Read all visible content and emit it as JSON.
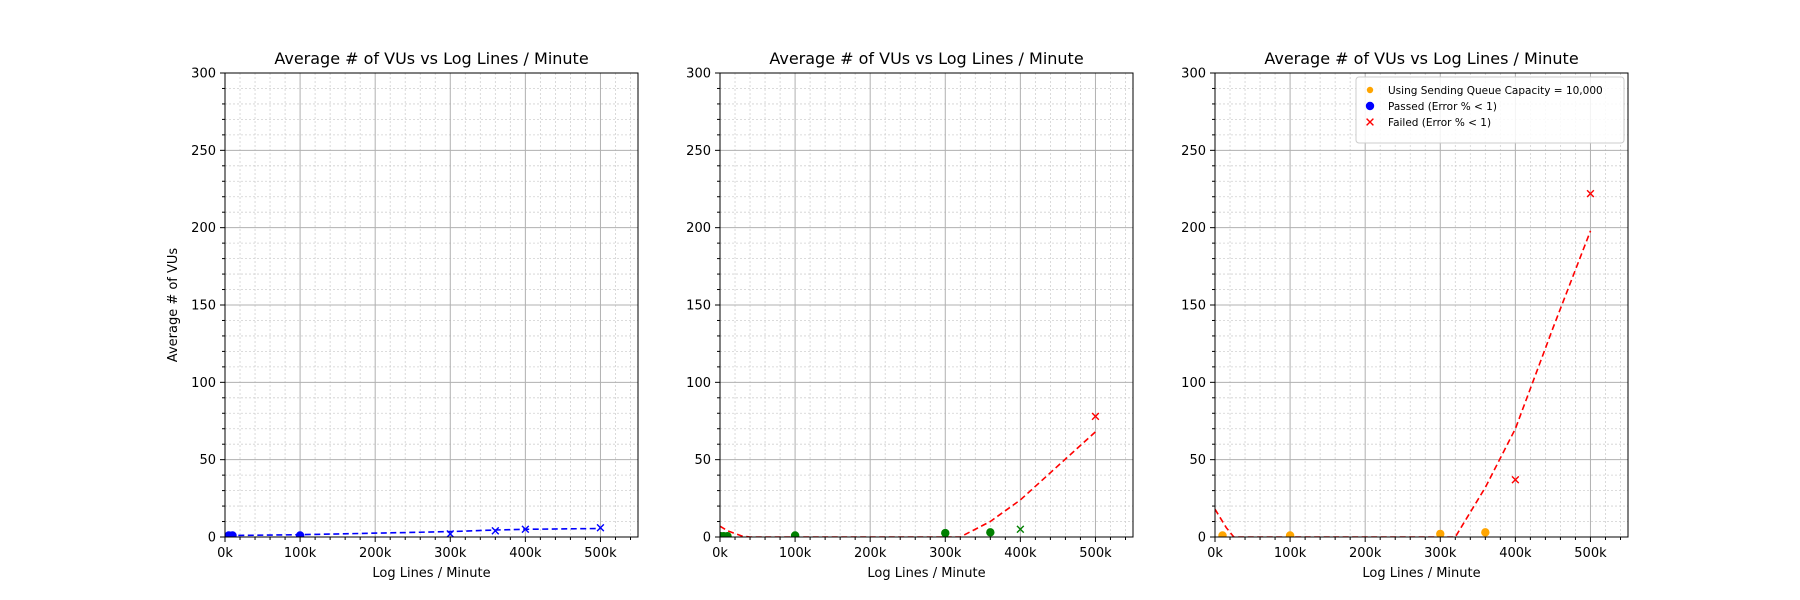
{
  "chart_data": [
    {
      "type": "scatter",
      "title": "Average # of VUs vs Log Lines / Minute",
      "xlabel": "Log Lines / Minute",
      "ylabel": "Average # of VUs",
      "xlim": [
        0,
        550000
      ],
      "ylim": [
        0,
        300
      ],
      "x_ticks": [
        0,
        100000,
        200000,
        300000,
        400000,
        500000
      ],
      "x_tick_labels": [
        "0k",
        "100k",
        "200k",
        "300k",
        "400k",
        "500k"
      ],
      "y_ticks": [
        0,
        50,
        100,
        150,
        200,
        250,
        300
      ],
      "y_tick_labels": [
        "0",
        "50",
        "100",
        "150",
        "200",
        "250",
        "300"
      ],
      "grid": {
        "major": true,
        "minor": true
      },
      "series": [
        {
          "color": "#0000ff",
          "marker": "circle",
          "x": [
            5000,
            10000,
            100000
          ],
          "y": [
            1,
            1,
            1
          ]
        },
        {
          "color": "#0000ff",
          "marker": "x",
          "x": [
            300000,
            360000,
            400000,
            500000
          ],
          "y": [
            2,
            4,
            5,
            6
          ]
        },
        {
          "color": "#0000ff",
          "style": "line-dashed",
          "x": [
            5000,
            10000,
            100000,
            300000,
            360000,
            400000,
            500000
          ],
          "y": [
            1,
            1,
            1.5,
            3.5,
            4.5,
            5,
            5.5
          ]
        }
      ]
    },
    {
      "type": "scatter",
      "title": "Average # of VUs vs Log Lines / Minute",
      "xlabel": "Log Lines / Minute",
      "ylabel": "",
      "xlim": [
        0,
        550000
      ],
      "ylim": [
        0,
        300
      ],
      "x_ticks": [
        0,
        100000,
        200000,
        300000,
        400000,
        500000
      ],
      "x_tick_labels": [
        "0k",
        "100k",
        "200k",
        "300k",
        "400k",
        "500k"
      ],
      "y_ticks": [
        0,
        50,
        100,
        150,
        200,
        250,
        300
      ],
      "y_tick_labels": [
        "0",
        "50",
        "100",
        "150",
        "200",
        "250",
        "300"
      ],
      "grid": {
        "major": true,
        "minor": true
      },
      "series": [
        {
          "color": "#008000",
          "marker": "circle",
          "x": [
            1000,
            5000,
            10000,
            100000,
            300000,
            360000
          ],
          "y": [
            0.5,
            0.5,
            0.5,
            1,
            2.5,
            3
          ]
        },
        {
          "color": "#008000",
          "marker": "x",
          "x": [
            400000
          ],
          "y": [
            5
          ]
        },
        {
          "color": "#ff0000",
          "marker": "x",
          "x": [
            500000
          ],
          "y": [
            78
          ]
        },
        {
          "color": "#ff0000",
          "style": "line-dashed",
          "x": [
            0,
            10000,
            30000,
            40000,
            320000,
            360000,
            400000,
            500000
          ],
          "y": [
            7,
            4,
            0.5,
            0,
            0,
            10,
            24,
            68
          ]
        }
      ]
    },
    {
      "type": "scatter",
      "title": "Average # of VUs vs Log Lines / Minute",
      "xlabel": "Log Lines / Minute",
      "ylabel": "",
      "xlim": [
        0,
        550000
      ],
      "ylim": [
        0,
        300
      ],
      "x_ticks": [
        0,
        100000,
        200000,
        300000,
        400000,
        500000
      ],
      "x_tick_labels": [
        "0k",
        "100k",
        "200k",
        "300k",
        "400k",
        "500k"
      ],
      "y_ticks": [
        0,
        50,
        100,
        150,
        200,
        250,
        300
      ],
      "y_tick_labels": [
        "0",
        "50",
        "100",
        "150",
        "200",
        "250",
        "300"
      ],
      "grid": {
        "major": true,
        "minor": true
      },
      "legend": {
        "placement": "top-right",
        "entries": [
          {
            "label": "Using Sending Queue Capacity = 10,000",
            "color": "#ffa500",
            "marker": "circle-small"
          },
          {
            "label": "Passed (Error % < 1)",
            "color": "#0000ff",
            "marker": "circle"
          },
          {
            "label": "Failed (Error % < 1)",
            "color": "#ff0000",
            "marker": "x"
          }
        ]
      },
      "series": [
        {
          "color": "#ffa500",
          "marker": "circle",
          "x": [
            10000,
            100000,
            300000,
            360000
          ],
          "y": [
            1,
            1,
            2,
            3
          ]
        },
        {
          "color": "#ff0000",
          "marker": "x",
          "x": [
            400000,
            500000
          ],
          "y": [
            37,
            222
          ]
        },
        {
          "color": "#ff0000",
          "style": "line-dashed",
          "x": [
            0,
            15000,
            25000,
            320000,
            360000,
            400000,
            450000,
            500000
          ],
          "y": [
            18,
            6,
            0,
            0,
            32,
            70,
            135,
            198
          ]
        }
      ]
    }
  ]
}
